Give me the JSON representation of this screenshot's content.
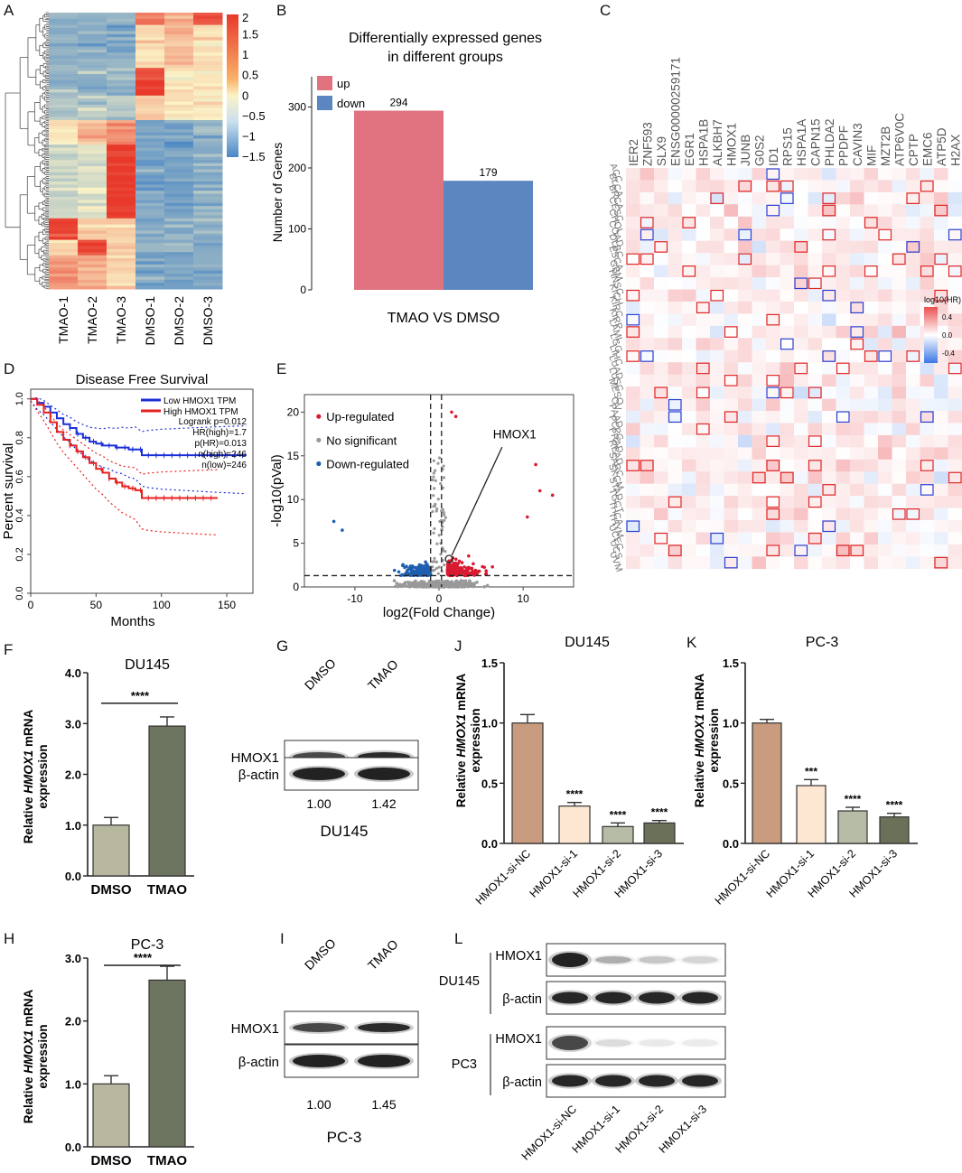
{
  "panels": {
    "A": "A",
    "B": "B",
    "C": "C",
    "D": "D",
    "E": "E",
    "F": "F",
    "G": "G",
    "H": "H",
    "I": "I",
    "J": "J",
    "K": "K",
    "L": "L"
  },
  "colors": {
    "red": "#d7191c",
    "heat_high": "#e8392b",
    "heat_mid": "#fbf3c6",
    "heat_low": "#4a86c5",
    "up": "#e0737f",
    "down": "#5b86bf",
    "bar_dmso": "#b8b8a0",
    "bar_tmao": "#6d7560",
    "bar_nc": "#c99b7f",
    "bar_si1": "#fde7d2",
    "bar_si2": "#b6bca6",
    "bar_si3": "#6a7158",
    "km_low": "#1b2fd6",
    "km_high": "#e62020",
    "sig_blue": "#1f5fb0",
    "sig_red": "#d81b30",
    "sig_gray": "#999999"
  },
  "chart_data": [
    {
      "id": "A",
      "type": "heatmap",
      "columns": [
        "TMAO-1",
        "TMAO-2",
        "TMAO-3",
        "DMSO-1",
        "DMSO-2",
        "DMSO-3"
      ],
      "colorbar_ticks": [
        "2",
        "1.5",
        "1",
        "0.5",
        "0",
        "−0.5",
        "−1",
        "−1.5"
      ],
      "range": [
        -1.5,
        2
      ]
    },
    {
      "id": "B",
      "type": "bar",
      "title": "Differentially expressed genes in different groups",
      "title_lines": [
        "Differentially expressed genes",
        "in different groups"
      ],
      "categories": [
        "up",
        "down"
      ],
      "values": [
        294,
        179
      ],
      "value_labels": [
        "294",
        "179"
      ],
      "legend": [
        "up",
        "down"
      ],
      "ylabel": "Number of Genes",
      "xlabel": "TMAO VS DMSO",
      "yticks": [
        "0",
        "100",
        "200",
        "300"
      ],
      "ylim": [
        0,
        320
      ]
    },
    {
      "id": "C",
      "type": "heatmap",
      "genes": [
        "IER2",
        "ZNF593",
        "SLX9",
        "ENSG00000259171",
        "EGR1",
        "HSPA1B",
        "ALKBH7",
        "HMOX1",
        "JUNB",
        "G0S2",
        "ID1",
        "RPS15",
        "HSPA1A",
        "CAPN15",
        "PHLDA2",
        "PPDPF",
        "CAVIN3",
        "MIF",
        "MZT2B",
        "ATP6V0C",
        "CPTP",
        "EMC6",
        "ATP5D",
        "H2AX"
      ],
      "cancers": [
        "ACC",
        "BLCA",
        "BRCA",
        "CESC",
        "CHOL",
        "COAD",
        "DLBC",
        "ESCA",
        "GBM",
        "HNSC",
        "KICH",
        "KIRC",
        "KIRP",
        "LAML",
        "LGG",
        "LIHC",
        "LUAD",
        "LUSC",
        "MESO",
        "OV",
        "PAAD",
        "PCPG",
        "PRAD",
        "READ",
        "SARC",
        "SKCM",
        "STAD",
        "TGCT",
        "THCA",
        "THYM",
        "UCEC",
        "UCS",
        "UVM"
      ],
      "legend_title": "log10(HR)",
      "legend_ticks": [
        "0.4",
        "0.0",
        "-0.4"
      ]
    },
    {
      "id": "D",
      "type": "line",
      "title": "Disease Free Survival",
      "xlabel": "Months",
      "ylabel": "Percent survival",
      "xticks": [
        "0",
        "50",
        "100",
        "150"
      ],
      "yticks": [
        "0.0",
        "0.2",
        "0.4",
        "0.6",
        "0.8",
        "1.0"
      ],
      "xlim": [
        0,
        170
      ],
      "ylim": [
        0,
        1.05
      ],
      "legend": [
        "Low HMOX1 TPM",
        "High HMOX1 TPM"
      ],
      "stats": [
        "Logrank p=0.012",
        "HR(high)=1.7",
        "p(HR)=0.013",
        "n(high)=246",
        "n(low)=246"
      ],
      "series": [
        {
          "name": "Low HMOX1 TPM",
          "x": [
            0,
            5,
            10,
            15,
            20,
            25,
            30,
            35,
            40,
            45,
            50,
            55,
            60,
            65,
            70,
            75,
            80,
            85,
            90,
            100,
            120,
            140,
            165
          ],
          "y": [
            1.0,
            0.98,
            0.96,
            0.93,
            0.9,
            0.87,
            0.85,
            0.82,
            0.8,
            0.78,
            0.77,
            0.76,
            0.76,
            0.75,
            0.75,
            0.74,
            0.74,
            0.71,
            0.71,
            0.71,
            0.71,
            0.71,
            0.71
          ]
        },
        {
          "name": "High HMOX1 TPM",
          "x": [
            0,
            5,
            10,
            15,
            20,
            25,
            30,
            35,
            40,
            45,
            50,
            55,
            60,
            65,
            70,
            75,
            80,
            85,
            90,
            100,
            120,
            143
          ],
          "y": [
            1.0,
            0.97,
            0.93,
            0.88,
            0.83,
            0.79,
            0.76,
            0.73,
            0.7,
            0.67,
            0.64,
            0.62,
            0.59,
            0.57,
            0.55,
            0.54,
            0.53,
            0.49,
            0.49,
            0.49,
            0.49,
            0.49
          ]
        }
      ]
    },
    {
      "id": "E",
      "type": "scatter",
      "xlabel": "log2(Fold Change)",
      "ylabel": "-log10(pVal)",
      "xticks": [
        "-10",
        "0",
        "10"
      ],
      "yticks": [
        "0",
        "5",
        "10",
        "15",
        "20"
      ],
      "xlim": [
        -16,
        16
      ],
      "ylim": [
        0,
        22
      ],
      "legend": [
        "Up-regulated",
        "No significant",
        "Down-regulated"
      ],
      "annotation": "HMOX1",
      "highlight": {
        "x": 1.2,
        "y": 3.2
      }
    },
    {
      "id": "F",
      "type": "bar",
      "title": "DU145",
      "categories": [
        "DMSO",
        "TMAO"
      ],
      "values": [
        1.0,
        2.95
      ],
      "errors": [
        0.15,
        0.18
      ],
      "ylabel": "Relative HMOX1 mRNA expression",
      "ylabel_parts": [
        "Relative ",
        "HMOX1",
        " mRNA"
      ],
      "ylabel_line2": "expression",
      "yticks": [
        "0.0",
        "1.0",
        "2.0",
        "3.0",
        "4.0"
      ],
      "ylim": [
        0,
        4
      ],
      "significance": "****"
    },
    {
      "id": "H",
      "type": "bar",
      "title": "PC-3",
      "categories": [
        "DMSO",
        "TMAO"
      ],
      "values": [
        1.0,
        2.65
      ],
      "errors": [
        0.13,
        0.22
      ],
      "ylabel": "Relative HMOX1 mRNA expression",
      "ylabel_parts": [
        "Relative ",
        "HMOX1",
        " mRNA"
      ],
      "ylabel_line2": "expression",
      "yticks": [
        "0.0",
        "1.0",
        "2.0",
        "3.0"
      ],
      "ylim": [
        0,
        3
      ],
      "significance": "****"
    },
    {
      "id": "J",
      "type": "bar",
      "title": "DU145",
      "categories": [
        "HMOX1-si-NC",
        "HMOX1-si-1",
        "HMOX1-si-2",
        "HMOX1-si-3"
      ],
      "values": [
        1.0,
        0.31,
        0.14,
        0.17
      ],
      "errors": [
        0.07,
        0.03,
        0.03,
        0.02
      ],
      "stars": [
        "",
        "****",
        "****",
        "****"
      ],
      "ylabel": "Relative HMOX1 mRNA expression",
      "ylabel_parts": [
        "Relative ",
        "HMOX1",
        " mRNA"
      ],
      "ylabel_line2": "expression",
      "yticks": [
        "0.0",
        "0.5",
        "1.0",
        "1.5"
      ],
      "ylim": [
        0,
        1.5
      ]
    },
    {
      "id": "K",
      "type": "bar",
      "title": "PC-3",
      "categories": [
        "HMOX1-si-NC",
        "HMOX1-si-1",
        "HMOX1-si-2",
        "HMOX1-si-3"
      ],
      "values": [
        1.0,
        0.48,
        0.27,
        0.22
      ],
      "errors": [
        0.03,
        0.05,
        0.03,
        0.03
      ],
      "stars": [
        "",
        "***",
        "****",
        "****"
      ],
      "ylabel": "Relative HMOX1 mRNA expression",
      "ylabel_parts": [
        "Relative ",
        "HMOX1",
        " mRNA"
      ],
      "ylabel_line2": "expression",
      "yticks": [
        "0.0",
        "0.5",
        "1.0",
        "1.5"
      ],
      "ylim": [
        0,
        1.5
      ]
    }
  ],
  "blots": {
    "G": {
      "lanes": [
        "DMSO",
        "TMAO"
      ],
      "rows": [
        "HMOX1",
        "β-actin"
      ],
      "quant": [
        "1.00",
        "1.42"
      ],
      "cell": "DU145"
    },
    "I": {
      "lanes": [
        "DMSO",
        "TMAO"
      ],
      "rows": [
        "HMOX1",
        "β-actin"
      ],
      "quant": [
        "1.00",
        "1.45"
      ],
      "cell": "PC-3"
    },
    "L": {
      "lanes": [
        "HMOX1-si-NC",
        "HMOX1-si-1",
        "HMOX1-si-2",
        "HMOX1-si-3"
      ],
      "groups": [
        "DU145",
        "PC3"
      ],
      "rows": [
        "HMOX1",
        "β-actin"
      ]
    }
  }
}
